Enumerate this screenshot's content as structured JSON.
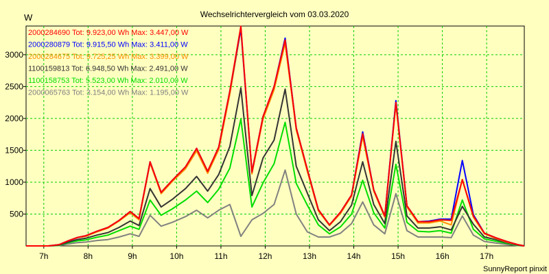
{
  "chart_data": {
    "type": "line",
    "title": "Wechselrichtervergleich vom 03.03.2020",
    "ylabel": "W",
    "footer": "SunnyReport pinxit",
    "ylim": [
      0,
      3450
    ],
    "xlim": [
      6.6,
      17.85
    ],
    "y_ticks": [
      500,
      1000,
      1500,
      2000,
      2500,
      3000
    ],
    "x_ticks": [
      {
        "value": 7,
        "label": "7h"
      },
      {
        "value": 8,
        "label": "8h"
      },
      {
        "value": 9,
        "label": "9h"
      },
      {
        "value": 10,
        "label": "10h"
      },
      {
        "value": 11,
        "label": "11h"
      },
      {
        "value": 12,
        "label": "12h"
      },
      {
        "value": 13,
        "label": "13h"
      },
      {
        "value": 14,
        "label": "14h"
      },
      {
        "value": 15,
        "label": "15h"
      },
      {
        "value": 16,
        "label": "16h"
      },
      {
        "value": 17,
        "label": "17h"
      }
    ],
    "grid": true,
    "legend_position": "top-left",
    "x": [
      6.6,
      6.9,
      7.1,
      7.35,
      7.55,
      7.75,
      7.95,
      8.2,
      8.45,
      8.7,
      8.95,
      9.15,
      9.4,
      9.65,
      9.9,
      10.2,
      10.45,
      10.7,
      10.95,
      11.2,
      11.45,
      11.7,
      11.95,
      12.2,
      12.45,
      12.7,
      12.95,
      13.2,
      13.45,
      13.7,
      13.95,
      14.2,
      14.45,
      14.7,
      14.95,
      15.2,
      15.45,
      15.7,
      15.95,
      16.2,
      16.45,
      16.7,
      16.95,
      17.2,
      17.45,
      17.7,
      17.85
    ],
    "series": [
      {
        "legend": "2000284690 Tot: 9.923,00 Wh Max: 3.447,00 W",
        "color": "#ff0000",
        "values": [
          0,
          0,
          0,
          20,
          80,
          130,
          160,
          230,
          290,
          400,
          540,
          430,
          1320,
          840,
          1030,
          1240,
          1530,
          1170,
          1550,
          2430,
          3447,
          1160,
          2030,
          2500,
          3230,
          1850,
          1200,
          570,
          330,
          530,
          800,
          1760,
          880,
          470,
          2250,
          630,
          380,
          380,
          410,
          400,
          1040,
          470,
          200,
          130,
          70,
          20,
          0
        ]
      },
      {
        "legend": "2000280879 Tot: 9.915,50 Wh Max: 3.411,00 W",
        "color": "#0000ff",
        "values": [
          0,
          0,
          0,
          20,
          80,
          130,
          160,
          230,
          290,
          400,
          540,
          430,
          1320,
          840,
          1030,
          1240,
          1530,
          1170,
          1550,
          2430,
          3411,
          1160,
          2030,
          2500,
          3260,
          1850,
          1200,
          570,
          330,
          530,
          800,
          1790,
          880,
          470,
          2280,
          630,
          380,
          390,
          420,
          420,
          1340,
          490,
          200,
          130,
          70,
          20,
          0
        ]
      },
      {
        "legend": "2000284675 Tot: 9.725,25 Wh Max: 3.399,00 W",
        "color": "#ff8c00",
        "values": [
          0,
          0,
          0,
          20,
          80,
          130,
          150,
          220,
          280,
          390,
          520,
          410,
          1300,
          820,
          1010,
          1210,
          1490,
          1140,
          1510,
          2380,
          3399,
          1130,
          1990,
          2450,
          3180,
          1820,
          1170,
          550,
          320,
          510,
          780,
          1720,
          860,
          450,
          2230,
          610,
          360,
          360,
          390,
          330,
          1040,
          450,
          190,
          120,
          60,
          20,
          0
        ]
      },
      {
        "legend": "1100159813 Tot: 6.948,50 Wh Max: 2.491,00 W",
        "color": "#333333",
        "values": [
          0,
          0,
          0,
          15,
          60,
          100,
          120,
          170,
          210,
          290,
          390,
          320,
          900,
          610,
          730,
          900,
          1090,
          860,
          1120,
          1560,
          2480,
          790,
          1380,
          1660,
          2460,
          1250,
          830,
          410,
          240,
          380,
          640,
          1320,
          650,
          350,
          1640,
          470,
          280,
          280,
          300,
          250,
          620,
          340,
          140,
          100,
          50,
          15,
          0
        ]
      },
      {
        "legend": "1100158753 Tot: 5.523,00 Wh Max: 2.010,00 W",
        "color": "#00dd00",
        "values": [
          0,
          0,
          0,
          10,
          50,
          80,
          95,
          135,
          170,
          240,
          310,
          260,
          720,
          480,
          580,
          720,
          860,
          680,
          890,
          1220,
          1990,
          610,
          990,
          1290,
          1940,
          980,
          640,
          330,
          190,
          300,
          500,
          1030,
          520,
          280,
          1280,
          370,
          230,
          220,
          240,
          200,
          720,
          260,
          110,
          75,
          40,
          10,
          0
        ]
      },
      {
        "legend": "2000065763 Tot: 3.154,00 Wh Max: 1.195,00 W",
        "color": "#808080",
        "values": [
          0,
          0,
          0,
          5,
          30,
          50,
          60,
          85,
          100,
          140,
          190,
          150,
          480,
          310,
          370,
          460,
          560,
          440,
          560,
          650,
          150,
          410,
          510,
          650,
          1190,
          500,
          220,
          140,
          140,
          200,
          350,
          690,
          330,
          190,
          820,
          240,
          140,
          140,
          140,
          130,
          470,
          170,
          70,
          45,
          25,
          5,
          0
        ]
      }
    ]
  }
}
